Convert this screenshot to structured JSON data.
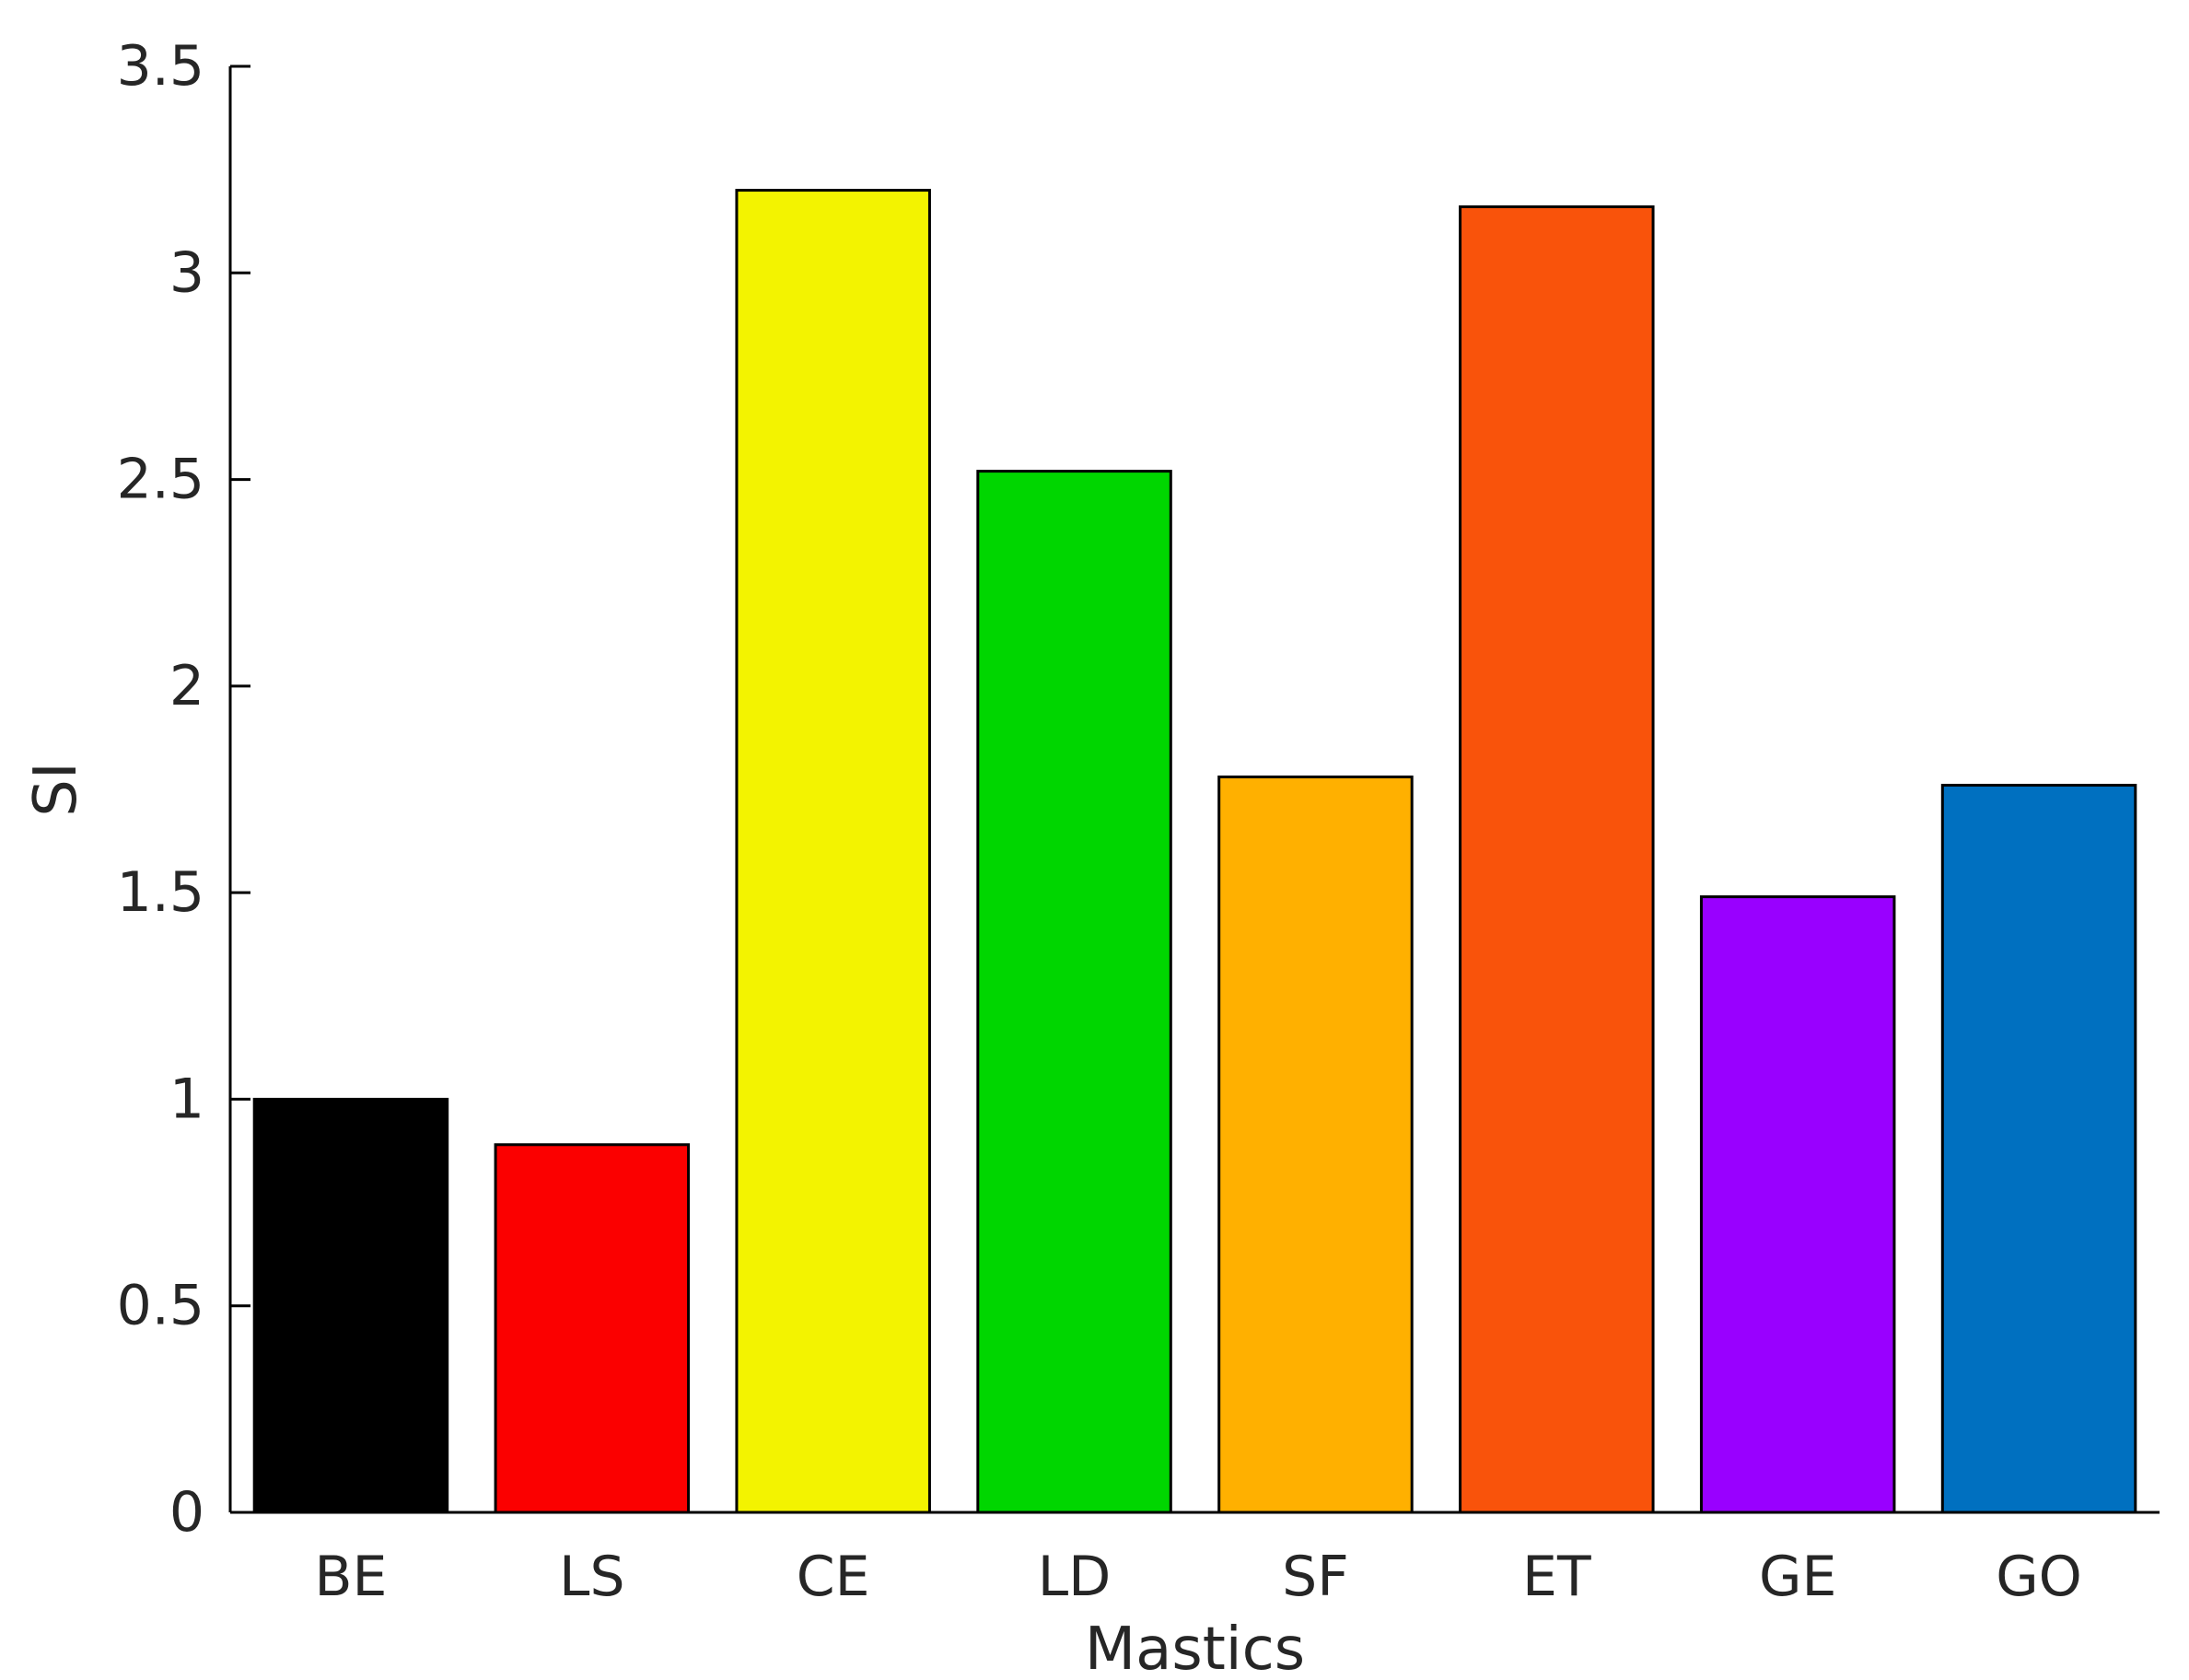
{
  "chart_data": {
    "type": "bar",
    "title": "",
    "xlabel": "Mastics",
    "ylabel": "SI",
    "categories": [
      "BE",
      "LS",
      "CE",
      "LD",
      "SF",
      "ET",
      "GE",
      "GO"
    ],
    "values": [
      1.0,
      0.89,
      3.2,
      2.52,
      1.78,
      3.16,
      1.49,
      1.76
    ],
    "colors": [
      "#000000",
      "#fb0000",
      "#f3f300",
      "#00d600",
      "#ffb000",
      "#f9530b",
      "#9900ff",
      "#0070c0"
    ],
    "ylim": [
      0,
      3.5
    ],
    "yticks": [
      0,
      0.5,
      1,
      1.5,
      2,
      2.5,
      3,
      3.5
    ],
    "ytick_labels": [
      "0",
      "0.5",
      "1",
      "1.5",
      "2",
      "2.5",
      "3",
      "3.5"
    ],
    "grid": false,
    "legend": "none"
  }
}
